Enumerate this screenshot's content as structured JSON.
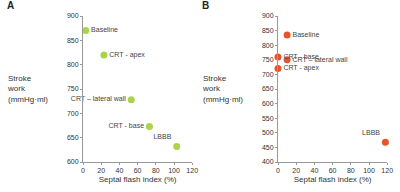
{
  "chart_data": [
    {
      "type": "scatter",
      "title": "A",
      "x": [
        3,
        23,
        53,
        73,
        103
      ],
      "values": [
        870,
        820,
        728,
        673,
        632
      ],
      "labels": [
        "Baseline",
        "CRT - apex",
        "CRT – lateral wall",
        "CRT - base",
        "LBBB"
      ],
      "color": "#a9d34b",
      "marker": "circle",
      "xlabel": "Septal flash index (%)",
      "ylabel": "Stroke work (mmHg·ml)",
      "xlim": [
        0,
        120
      ],
      "xticks": [
        0,
        20,
        40,
        60,
        80,
        100,
        120
      ],
      "ylim": [
        600,
        900
      ],
      "yticks": [
        600,
        650,
        700,
        750,
        800,
        850,
        900
      ],
      "grid": false
    },
    {
      "type": "scatter",
      "title": "B",
      "x": [
        10,
        0,
        10,
        0,
        118
      ],
      "values": [
        835,
        760,
        750,
        720,
        468
      ],
      "labels": [
        "Baseline",
        "CRT - base",
        "CRT – lateral wall",
        "CRT - apex",
        "LBBB"
      ],
      "color": "#e8532b",
      "marker": "circle",
      "xlabel": "Septal flash index (%)",
      "ylabel": "Stroke work (mmHg·ml)",
      "xlim": [
        0,
        120
      ],
      "xticks": [
        0,
        20,
        40,
        60,
        80,
        100,
        120
      ],
      "ylim": [
        400,
        900
      ],
      "yticks": [
        400,
        450,
        500,
        550,
        600,
        650,
        700,
        750,
        800,
        850,
        900
      ],
      "grid": false
    }
  ]
}
